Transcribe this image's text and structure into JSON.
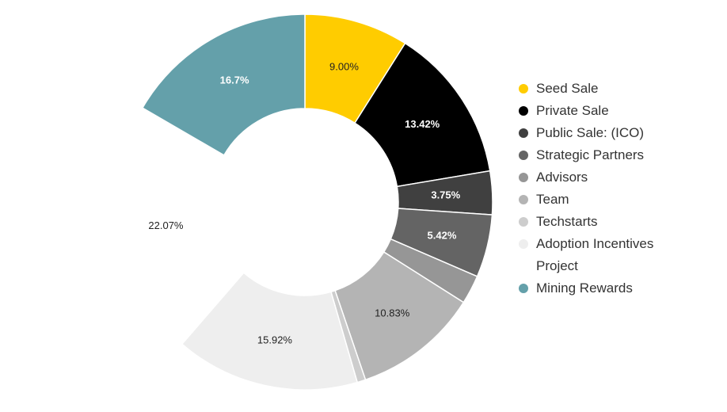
{
  "chart_data": {
    "type": "pie",
    "variant": "donut",
    "legend_position": "right",
    "slices": [
      {
        "label": "Seed Sale",
        "value": 9.0,
        "display": "9.00%",
        "color": "#FFCC00",
        "text_color": "#222222"
      },
      {
        "label": "Private Sale",
        "value": 13.42,
        "display": "13.42%",
        "color": "#000000",
        "text_color": "#FFFFFF"
      },
      {
        "label": "Public Sale: (ICO)",
        "value": 3.75,
        "display": "3.75%",
        "color": "#404040",
        "text_color": "#FFFFFF"
      },
      {
        "label": "Strategic Partners",
        "value": 5.42,
        "display": "5.42%",
        "color": "#646464",
        "text_color": "#FFFFFF"
      },
      {
        "label": "Advisors",
        "value": 2.5,
        "display": "",
        "color": "#969696",
        "text_color": "#222222"
      },
      {
        "label": "Team",
        "value": 10.83,
        "display": "10.83%",
        "color": "#B4B4B4",
        "text_color": "#222222"
      },
      {
        "label": "Techstarts",
        "value": 0.73,
        "display": "",
        "color": "#CDCDCD",
        "text_color": "#222222"
      },
      {
        "label": "Adoption Incentives",
        "value": 15.92,
        "display": "15.92%",
        "color": "#EEEEEE",
        "text_color": "#222222"
      },
      {
        "label": "Project",
        "value": 22.07,
        "display": "22.07%",
        "color": "#FFFFFF",
        "text_color": "#222222"
      },
      {
        "label": "Mining Rewards",
        "value": 16.7,
        "display": "16.7%",
        "color": "#64A0AA",
        "text_color": "#FFFFFF"
      }
    ]
  }
}
